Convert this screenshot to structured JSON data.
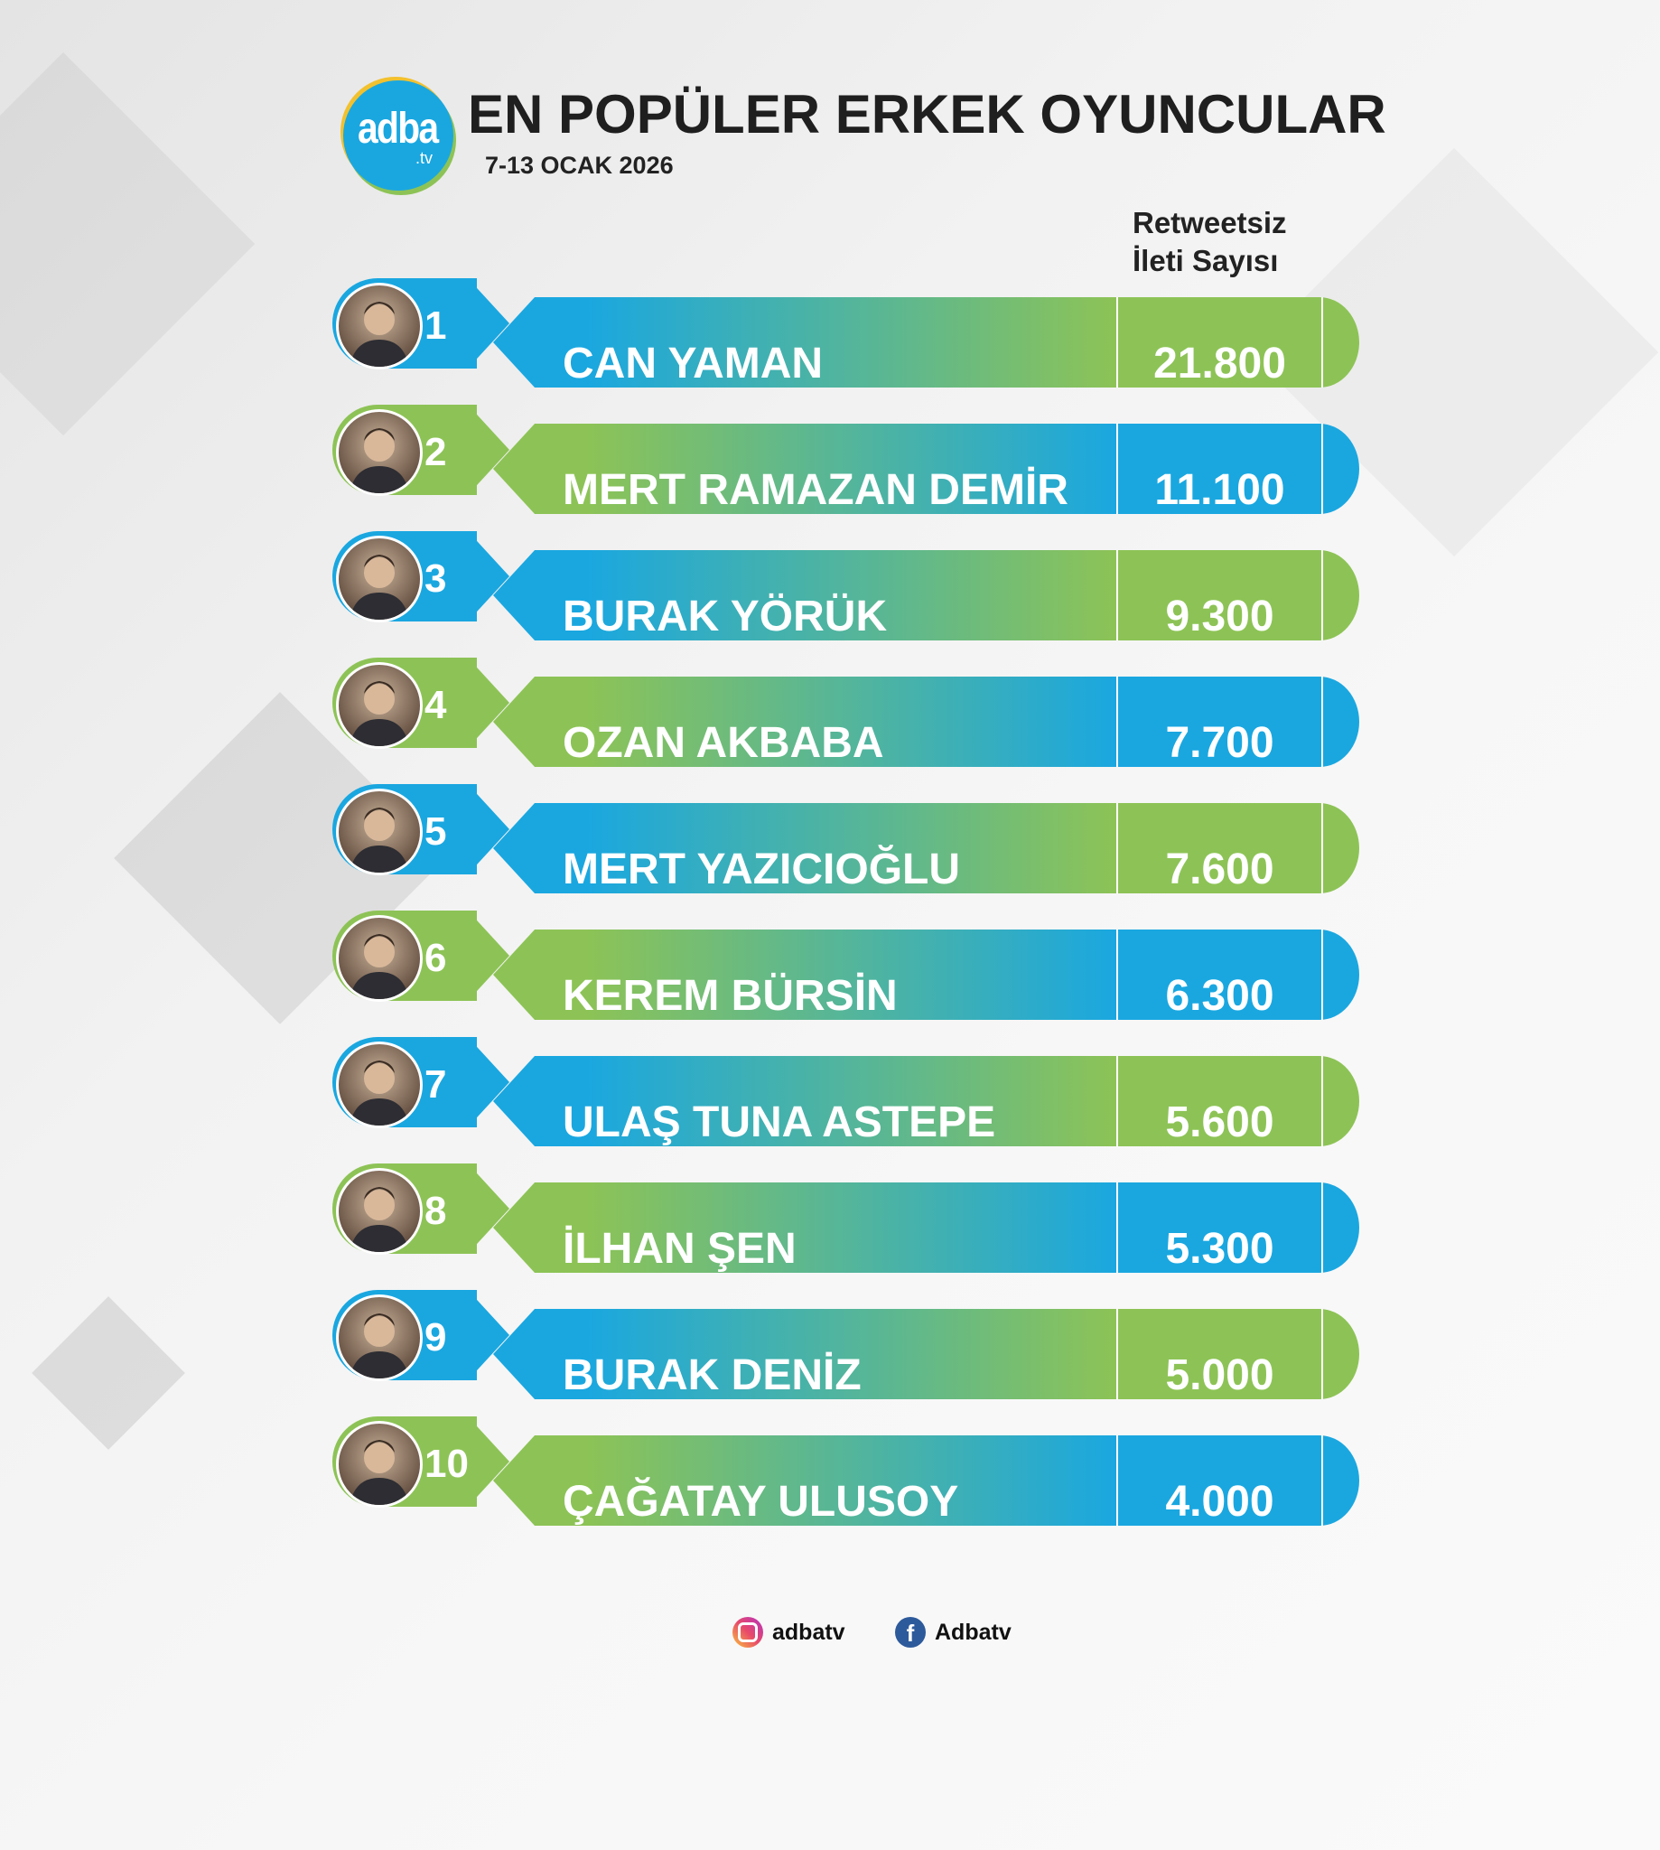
{
  "logo": {
    "main": "adba",
    "sub": ".tv"
  },
  "header": {
    "title": "EN POPÜLER ERKEK OYUNCULAR",
    "date": "7-13 OCAK 2026",
    "column_heading_line1": "Retweetsiz",
    "column_heading_line2": "İleti Sayısı"
  },
  "colors": {
    "blue": "#1aa7e0",
    "green": "#8dc356"
  },
  "rows": [
    {
      "rank": "1",
      "name": "CAN YAMAN",
      "value": "21.800"
    },
    {
      "rank": "2",
      "name": "MERT RAMAZAN DEMİR",
      "value": "11.100"
    },
    {
      "rank": "3",
      "name": "BURAK YÖRÜK",
      "value": "9.300"
    },
    {
      "rank": "4",
      "name": "OZAN AKBABA",
      "value": "7.700"
    },
    {
      "rank": "5",
      "name": "MERT YAZICIOĞLU",
      "value": "7.600"
    },
    {
      "rank": "6",
      "name": "KEREM BÜRSİN",
      "value": "6.300"
    },
    {
      "rank": "7",
      "name": "ULAŞ TUNA ASTEPE",
      "value": "5.600"
    },
    {
      "rank": "8",
      "name": "İLHAN ŞEN",
      "value": "5.300"
    },
    {
      "rank": "9",
      "name": "BURAK DENİZ",
      "value": "5.000"
    },
    {
      "rank": "10",
      "name": "ÇAĞATAY ULUSOY",
      "value": "4.000"
    }
  ],
  "footer": {
    "instagram": {
      "icon": "instagram-icon",
      "handle": "adbatv"
    },
    "facebook": {
      "icon": "facebook-icon",
      "handle": "Adbatv"
    }
  }
}
